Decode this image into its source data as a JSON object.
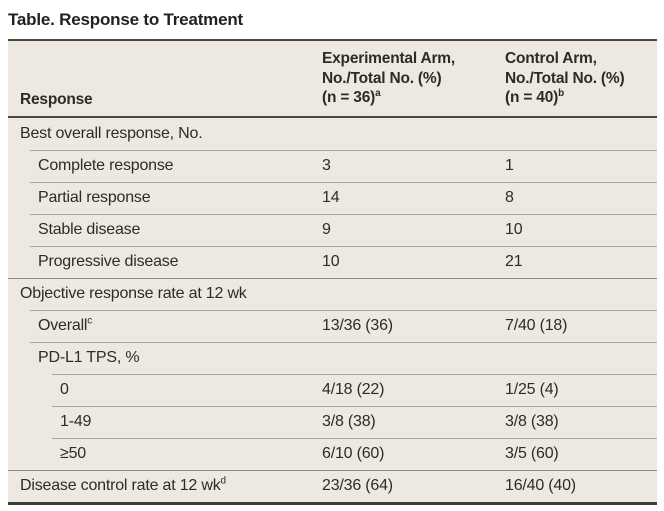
{
  "title": "Table. Response to Treatment",
  "colors": {
    "table_background": "#EEE9E0",
    "text": "#2E2A26",
    "rule_dark": "#4A4742",
    "rule_light": "#ADA79D"
  },
  "table": {
    "header": {
      "response_label": "Response",
      "experimental": {
        "lines": [
          "Experimental Arm,",
          "No./Total No. (%)",
          "(n = 36)"
        ],
        "sup": "a"
      },
      "control": {
        "lines": [
          "Control Arm,",
          "No./Total No. (%)",
          "(n = 40)"
        ],
        "sup": "b"
      }
    },
    "rows": [
      {
        "label": "Best overall response, No.",
        "sup": "",
        "indent": 0,
        "section": true,
        "experimental": "",
        "control": ""
      },
      {
        "label": "Complete response",
        "sup": "",
        "indent": 1,
        "section": false,
        "experimental": "3",
        "control": "1"
      },
      {
        "label": "Partial response",
        "sup": "",
        "indent": 1,
        "section": false,
        "experimental": "14",
        "control": "8"
      },
      {
        "label": "Stable disease",
        "sup": "",
        "indent": 1,
        "section": false,
        "experimental": "9",
        "control": "10"
      },
      {
        "label": "Progressive disease",
        "sup": "",
        "indent": 1,
        "section": false,
        "experimental": "10",
        "control": "21"
      },
      {
        "label": "Objective response rate at 12 wk",
        "sup": "",
        "indent": 0,
        "section": true,
        "experimental": "",
        "control": ""
      },
      {
        "label": "Overall",
        "sup": "c",
        "indent": 1,
        "section": false,
        "experimental": "13/36 (36)",
        "control": "7/40 (18)"
      },
      {
        "label": "PD-L1 TPS, %",
        "sup": "",
        "indent": 1,
        "section": true,
        "experimental": "",
        "control": ""
      },
      {
        "label": "0",
        "sup": "",
        "indent": 2,
        "section": false,
        "experimental": "4/18 (22)",
        "control": "1/25 (4)"
      },
      {
        "label": "1-49",
        "sup": "",
        "indent": 2,
        "section": false,
        "experimental": "3/8 (38)",
        "control": "3/8 (38)"
      },
      {
        "label": "≥50",
        "sup": "",
        "indent": 2,
        "section": false,
        "experimental": "6/10 (60)",
        "control": "3/5 (60)"
      },
      {
        "label": "Disease control rate at 12 wk",
        "sup": "d",
        "indent": 0,
        "section": false,
        "experimental": "23/36 (64)",
        "control": "16/40 (40)"
      }
    ]
  }
}
